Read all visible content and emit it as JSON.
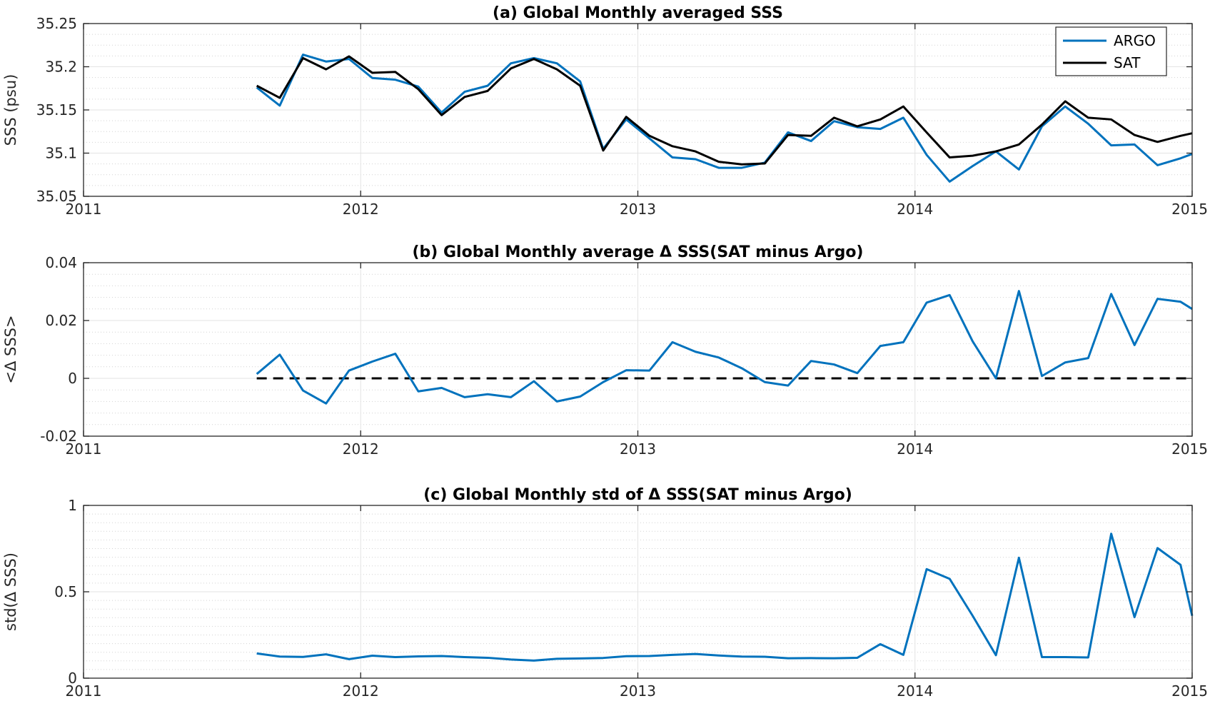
{
  "chart_data": [
    {
      "type": "line",
      "title": "(a) Global Monthly averaged SSS",
      "ylabel": "SSS (psu)",
      "xlim": [
        2011,
        2015
      ],
      "ylim": [
        35.05,
        35.25
      ],
      "xticks": [
        2011,
        2012,
        2013,
        2014,
        2015
      ],
      "xtick_labels": [
        "2011",
        "2012",
        "2013",
        "2014",
        "2015"
      ],
      "yticks": [
        35.05,
        35.1,
        35.15,
        35.2,
        35.25
      ],
      "ytick_labels": [
        "35.05",
        "35.1",
        "35.15",
        "35.2",
        "35.25"
      ],
      "grid": true,
      "legend": "top-right",
      "x": [
        2011.625,
        2011.708,
        2011.792,
        2011.875,
        2011.958,
        2012.042,
        2012.125,
        2012.208,
        2012.292,
        2012.375,
        2012.458,
        2012.542,
        2012.625,
        2012.708,
        2012.792,
        2012.875,
        2012.958,
        2013.042,
        2013.125,
        2013.208,
        2013.292,
        2013.375,
        2013.458,
        2013.542,
        2013.625,
        2013.708,
        2013.792,
        2013.875,
        2013.958,
        2014.042,
        2014.125,
        2014.208,
        2014.292,
        2014.375,
        2014.458,
        2014.542,
        2014.625,
        2014.708,
        2014.792,
        2014.875,
        2014.958,
        2015.0
      ],
      "series": [
        {
          "name": "ARGO",
          "color": "#0072bd",
          "values": [
            35.176,
            35.155,
            35.214,
            35.206,
            35.209,
            35.187,
            35.185,
            35.177,
            35.147,
            35.171,
            35.178,
            35.204,
            35.21,
            35.204,
            35.183,
            35.105,
            35.139,
            35.117,
            35.095,
            35.093,
            35.083,
            35.083,
            35.089,
            35.124,
            35.114,
            35.137,
            35.13,
            35.128,
            35.141,
            35.098,
            35.067,
            35.085,
            35.102,
            35.081,
            35.131,
            35.154,
            35.134,
            35.109,
            35.11,
            35.086,
            35.094,
            35.099
          ]
        },
        {
          "name": "SAT",
          "color": "#000000",
          "values": [
            35.178,
            35.164,
            35.21,
            35.197,
            35.212,
            35.193,
            35.194,
            35.174,
            35.144,
            35.165,
            35.172,
            35.198,
            35.209,
            35.197,
            35.178,
            35.103,
            35.142,
            35.12,
            35.108,
            35.102,
            35.09,
            35.087,
            35.088,
            35.121,
            35.12,
            35.141,
            35.131,
            35.139,
            35.154,
            35.124,
            35.095,
            35.097,
            35.102,
            35.11,
            35.133,
            35.16,
            35.141,
            35.139,
            35.121,
            35.113,
            35.12,
            35.123
          ]
        }
      ]
    },
    {
      "type": "line",
      "title": "(b) Global Monthly average Δ SSS(SAT minus Argo)",
      "ylabel": "<Δ SSS>",
      "xlim": [
        2011,
        2015
      ],
      "ylim": [
        -0.02,
        0.04
      ],
      "xticks": [
        2011,
        2012,
        2013,
        2014,
        2015
      ],
      "xtick_labels": [
        "2011",
        "2012",
        "2013",
        "2014",
        "2015"
      ],
      "yticks": [
        -0.02,
        0,
        0.02,
        0.04
      ],
      "ytick_labels": [
        "-0.02",
        "0",
        "0.02",
        "0.04"
      ],
      "grid": true,
      "reference_line": {
        "y": 0,
        "style": "dashed",
        "color": "#000000"
      },
      "x": [
        2011.625,
        2011.708,
        2011.792,
        2011.875,
        2011.958,
        2012.042,
        2012.125,
        2012.208,
        2012.292,
        2012.375,
        2012.458,
        2012.542,
        2012.625,
        2012.708,
        2012.792,
        2012.875,
        2012.958,
        2013.042,
        2013.125,
        2013.208,
        2013.292,
        2013.375,
        2013.458,
        2013.542,
        2013.625,
        2013.708,
        2013.792,
        2013.875,
        2013.958,
        2014.042,
        2014.125,
        2014.208,
        2014.292,
        2014.375,
        2014.458,
        2014.542,
        2014.625,
        2014.708,
        2014.792,
        2014.875,
        2014.958,
        2015.0
      ],
      "series": [
        {
          "color": "#0072bd",
          "values": [
            0.0015,
            0.0082,
            -0.0042,
            -0.0087,
            0.0027,
            0.0058,
            0.0085,
            -0.0045,
            -0.0033,
            -0.0065,
            -0.0055,
            -0.0065,
            -0.001,
            -0.008,
            -0.0063,
            -0.0013,
            0.0028,
            0.0027,
            0.0125,
            0.0092,
            0.0072,
            0.0035,
            -0.0013,
            -0.0025,
            0.006,
            0.0048,
            0.0018,
            0.0112,
            0.0125,
            0.0262,
            0.0288,
            0.0128,
            0.0,
            0.0302,
            0.0008,
            0.0055,
            0.007,
            0.0292,
            0.0115,
            0.0275,
            0.0265,
            0.024
          ]
        }
      ]
    },
    {
      "type": "line",
      "title": "(c) Global Monthly std of Δ SSS(SAT minus Argo)",
      "ylabel": "std(Δ SSS)",
      "xlim": [
        2011,
        2015
      ],
      "ylim": [
        0,
        1
      ],
      "xticks": [
        2011,
        2012,
        2013,
        2014,
        2015
      ],
      "xtick_labels": [
        "2011",
        "2012",
        "2013",
        "2014",
        "2015"
      ],
      "yticks": [
        0,
        0.5,
        1
      ],
      "ytick_labels": [
        "0",
        "0.5",
        "1"
      ],
      "grid": true,
      "x": [
        2011.625,
        2011.708,
        2011.792,
        2011.875,
        2011.958,
        2012.042,
        2012.125,
        2012.208,
        2012.292,
        2012.375,
        2012.458,
        2012.542,
        2012.625,
        2012.708,
        2012.792,
        2012.875,
        2012.958,
        2013.042,
        2013.125,
        2013.208,
        2013.292,
        2013.375,
        2013.458,
        2013.542,
        2013.625,
        2013.708,
        2013.792,
        2013.875,
        2013.958,
        2014.042,
        2014.125,
        2014.208,
        2014.292,
        2014.375,
        2014.458,
        2014.542,
        2014.625,
        2014.708,
        2014.792,
        2014.875,
        2014.958,
        2015.0
      ],
      "series": [
        {
          "color": "#0072bd",
          "values": [
            0.143,
            0.125,
            0.123,
            0.138,
            0.11,
            0.13,
            0.122,
            0.126,
            0.128,
            0.122,
            0.118,
            0.108,
            0.102,
            0.112,
            0.114,
            0.117,
            0.127,
            0.128,
            0.135,
            0.14,
            0.131,
            0.125,
            0.124,
            0.115,
            0.116,
            0.115,
            0.118,
            0.197,
            0.135,
            0.631,
            0.575,
            0.361,
            0.133,
            0.697,
            0.122,
            0.122,
            0.12,
            0.836,
            0.353,
            0.753,
            0.656,
            0.361
          ]
        }
      ]
    }
  ]
}
